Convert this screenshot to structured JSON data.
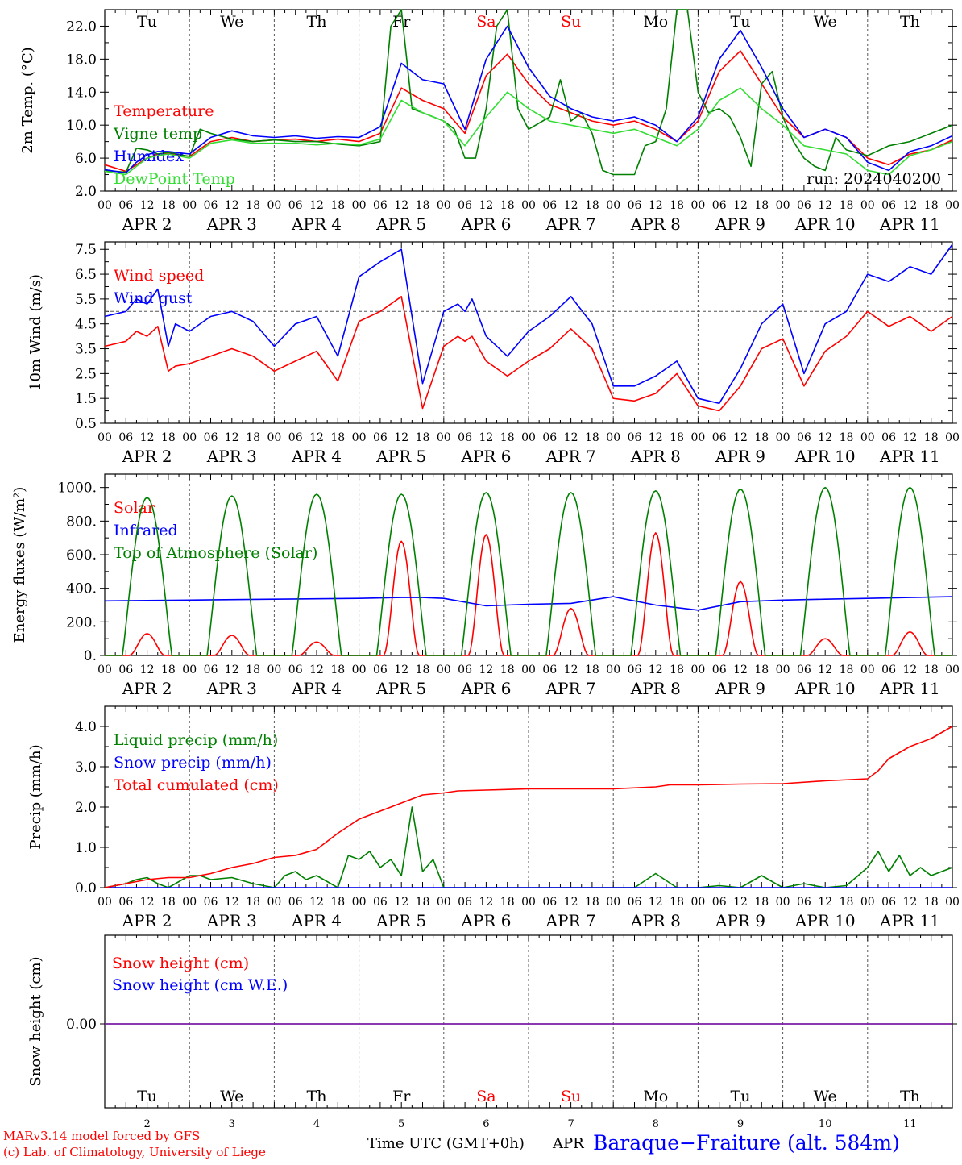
{
  "weekdays": [
    "Tu",
    "We",
    "Th",
    "Fr",
    "Sa",
    "Su",
    "Mo",
    "Tu",
    "We",
    "Th"
  ],
  "weekend_indices": [
    4,
    5
  ],
  "dates": [
    "APR  2",
    "APR  3",
    "APR  4",
    "APR  5",
    "APR  6",
    "APR  7",
    "APR  8",
    "APR  9",
    "APR 10",
    "APR 11"
  ],
  "day_numbers": [
    "2",
    "3",
    "4",
    "5",
    "6",
    "7",
    "8",
    "9",
    "10",
    "11"
  ],
  "hour_ticks": [
    "00",
    "06",
    "12",
    "18"
  ],
  "final_tick": "00",
  "colors": {
    "red": "#ff0000",
    "green": "#008000",
    "blue": "#0000ff",
    "lightgreen": "#33dd33",
    "purple": "#7a1fa2"
  },
  "footer": {
    "model": "MARv3.14 model forced by GFS",
    "lab": "(c) Lab. of Climatology, University of Liege",
    "time_label": "Time UTC (GMT+0h)",
    "month": "APR",
    "station": "Baraque−Fraiture (alt. 584m)"
  },
  "chart_data": [
    {
      "type": "line",
      "ylabel": "2m Temp. (°C)",
      "ylim": [
        2.0,
        24.0
      ],
      "yticks": [
        "2.0",
        "6.0",
        "10.0",
        "14.0",
        "18.0",
        "22.0"
      ],
      "annotation": "run: 2024040200",
      "x_unit": "hours since APR 2 00 UTC",
      "series": [
        {
          "name": "Temperature",
          "color": "#ff0000",
          "x": [
            0,
            6,
            9,
            12,
            15,
            18,
            24,
            30,
            36,
            42,
            48,
            54,
            60,
            66,
            72,
            78,
            84,
            90,
            96,
            102,
            108,
            114,
            120,
            126,
            132,
            138,
            144,
            150,
            156,
            162,
            168,
            174,
            180,
            186,
            192,
            198,
            204,
            210,
            216,
            222,
            228,
            234,
            240
          ],
          "y": [
            5.2,
            4.4,
            5.2,
            6.0,
            6.5,
            6.6,
            6.2,
            8.0,
            8.5,
            8.0,
            8.2,
            8.3,
            8.0,
            8.3,
            8.0,
            9.0,
            14.5,
            13.0,
            12.0,
            9.0,
            16.0,
            18.6,
            15.0,
            12.5,
            11.5,
            10.5,
            10.0,
            10.5,
            9.5,
            8.0,
            10.5,
            16.5,
            19.0,
            15.0,
            11.0,
            8.5,
            9.5,
            8.5,
            6.0,
            5.2,
            6.5,
            7.0,
            8.2
          ]
        },
        {
          "name": "Vigne temp",
          "color": "#008000",
          "x": [
            0,
            6,
            9,
            12,
            15,
            18,
            24,
            27,
            30,
            36,
            42,
            48,
            54,
            60,
            66,
            72,
            78,
            81,
            84,
            87,
            90,
            96,
            99,
            102,
            105,
            108,
            111,
            114,
            117,
            120,
            126,
            129,
            132,
            135,
            138,
            141,
            144,
            150,
            153,
            156,
            159,
            162,
            165,
            168,
            171,
            174,
            177,
            180,
            183,
            186,
            189,
            192,
            195,
            198,
            201,
            204,
            207,
            210,
            216,
            222,
            228,
            234,
            240
          ],
          "y": [
            4.5,
            4.3,
            7.2,
            7.0,
            6.5,
            6.7,
            6.2,
            9.5,
            9.0,
            8.3,
            8.0,
            8.2,
            8.0,
            8.0,
            7.7,
            7.5,
            8.0,
            22.0,
            24.0,
            12.0,
            11.5,
            10.5,
            9.5,
            6.0,
            6.0,
            12.0,
            22.0,
            24.0,
            12.0,
            9.5,
            11.0,
            15.5,
            10.5,
            11.5,
            9.0,
            4.5,
            4.0,
            4.0,
            7.5,
            8.0,
            12.0,
            24.0,
            24.0,
            14.0,
            11.5,
            12.0,
            11.0,
            8.5,
            5.0,
            15.0,
            16.5,
            11.0,
            8.0,
            6.0,
            5.0,
            4.5,
            8.5,
            7.0,
            6.3,
            7.5,
            8.0,
            9.0,
            10.0
          ]
        },
        {
          "name": "Humidex",
          "color": "#0000ff",
          "x": [
            0,
            6,
            9,
            12,
            15,
            18,
            24,
            30,
            36,
            42,
            48,
            54,
            60,
            66,
            72,
            78,
            84,
            90,
            96,
            102,
            108,
            114,
            120,
            126,
            132,
            138,
            144,
            150,
            156,
            162,
            168,
            174,
            180,
            186,
            192,
            198,
            204,
            210,
            216,
            222,
            228,
            234,
            240
          ],
          "y": [
            4.6,
            4.2,
            5.5,
            6.4,
            6.8,
            6.8,
            6.5,
            8.5,
            9.3,
            8.7,
            8.5,
            8.7,
            8.4,
            8.6,
            8.5,
            9.8,
            17.5,
            15.5,
            15.0,
            9.5,
            18.0,
            22.0,
            17.0,
            13.5,
            12.0,
            11.0,
            10.5,
            11.0,
            10.0,
            8.0,
            11.0,
            18.0,
            21.5,
            17.0,
            12.0,
            8.5,
            9.5,
            8.5,
            5.5,
            4.5,
            6.8,
            7.5,
            8.7
          ]
        },
        {
          "name": "DewPoint Temp",
          "color": "#33dd33",
          "x": [
            0,
            6,
            9,
            12,
            15,
            18,
            24,
            30,
            36,
            42,
            48,
            54,
            60,
            66,
            72,
            78,
            84,
            90,
            96,
            102,
            108,
            114,
            120,
            126,
            132,
            138,
            144,
            150,
            156,
            162,
            168,
            174,
            180,
            186,
            192,
            198,
            204,
            210,
            216,
            222,
            228,
            234,
            240
          ],
          "y": [
            4.4,
            4.0,
            5.0,
            6.0,
            6.3,
            6.5,
            6.0,
            7.8,
            8.2,
            7.8,
            7.8,
            7.8,
            7.6,
            7.8,
            7.6,
            8.3,
            13.0,
            11.5,
            10.5,
            7.5,
            11.0,
            14.0,
            12.0,
            10.5,
            10.0,
            9.5,
            9.0,
            9.5,
            8.5,
            7.5,
            9.5,
            13.0,
            14.5,
            12.0,
            10.0,
            7.5,
            7.0,
            6.5,
            4.5,
            4.0,
            6.3,
            7.0,
            8.0
          ]
        }
      ]
    },
    {
      "type": "line",
      "ylabel": "10m Wind (m/s)",
      "ylim": [
        0.5,
        7.8
      ],
      "yticks": [
        "0.5",
        "1.5",
        "2.5",
        "3.5",
        "4.5",
        "5.5",
        "6.5",
        "7.5"
      ],
      "reference_line": 5.0,
      "x_unit": "hours since APR 2 00 UTC",
      "series": [
        {
          "name": "Wind speed",
          "color": "#ff0000",
          "x": [
            0,
            6,
            9,
            12,
            15,
            18,
            20,
            24,
            30,
            36,
            42,
            48,
            54,
            60,
            66,
            72,
            78,
            84,
            90,
            96,
            100,
            102,
            104,
            108,
            114,
            120,
            126,
            132,
            138,
            144,
            150,
            156,
            162,
            168,
            174,
            180,
            186,
            192,
            198,
            204,
            210,
            216,
            222,
            228,
            234,
            240
          ],
          "y": [
            3.6,
            3.8,
            4.2,
            4.0,
            4.4,
            2.6,
            2.8,
            2.9,
            3.2,
            3.5,
            3.2,
            2.6,
            3.0,
            3.4,
            2.2,
            4.6,
            5.0,
            5.6,
            1.1,
            3.6,
            4.0,
            3.8,
            4.0,
            3.0,
            2.4,
            3.0,
            3.5,
            4.3,
            3.5,
            1.5,
            1.4,
            1.7,
            2.5,
            1.2,
            1.0,
            2.0,
            3.5,
            3.9,
            2.0,
            3.4,
            4.0,
            5.0,
            4.4,
            4.8,
            4.2,
            4.8
          ]
        },
        {
          "name": "Wind gust",
          "color": "#0000ff",
          "x": [
            0,
            6,
            9,
            12,
            15,
            18,
            20,
            24,
            30,
            36,
            42,
            48,
            54,
            60,
            66,
            72,
            78,
            84,
            90,
            96,
            100,
            102,
            104,
            108,
            114,
            120,
            126,
            132,
            138,
            144,
            150,
            156,
            162,
            168,
            174,
            180,
            186,
            192,
            198,
            204,
            210,
            216,
            222,
            228,
            234,
            240
          ],
          "y": [
            4.8,
            5.0,
            5.5,
            5.3,
            5.9,
            3.6,
            4.5,
            4.2,
            4.8,
            5.0,
            4.6,
            3.6,
            4.5,
            4.8,
            3.2,
            6.4,
            7.0,
            7.5,
            2.1,
            5.0,
            5.3,
            5.0,
            5.5,
            4.0,
            3.2,
            4.2,
            4.8,
            5.6,
            4.5,
            2.0,
            2.0,
            2.4,
            3.0,
            1.5,
            1.3,
            2.7,
            4.5,
            5.3,
            2.5,
            4.5,
            5.0,
            6.5,
            6.2,
            6.8,
            6.5,
            7.7
          ]
        }
      ]
    },
    {
      "type": "line",
      "ylabel": "Energy fluxes (W/m²)",
      "ylim": [
        0,
        1080
      ],
      "yticks": [
        "0.",
        "200.",
        "400.",
        "600.",
        "800.",
        "1000."
      ],
      "x_unit": "hours since APR 2 00 UTC",
      "series": [
        {
          "name": "Solar",
          "color": "#ff0000",
          "peaks": [
            130,
            120,
            80,
            680,
            720,
            280,
            730,
            440,
            100,
            140
          ]
        },
        {
          "name": "Infrared",
          "color": "#0000ff",
          "x": [
            0,
            24,
            48,
            72,
            84,
            90,
            96,
            108,
            120,
            132,
            144,
            156,
            168,
            180,
            192,
            204,
            216,
            228,
            240
          ],
          "y": [
            325,
            330,
            335,
            340,
            345,
            345,
            340,
            295,
            305,
            310,
            350,
            300,
            270,
            320,
            330,
            335,
            340,
            345,
            350
          ]
        },
        {
          "name": "Top of Atmosphere (Solar)",
          "color": "#008000",
          "peaks": [
            940,
            950,
            960,
            960,
            970,
            970,
            980,
            990,
            1000,
            1000
          ]
        }
      ]
    },
    {
      "type": "line",
      "ylabel": "Precip (mm/h)",
      "ylim": [
        0,
        4.5
      ],
      "yticks": [
        "0.0",
        "1.0",
        "2.0",
        "3.0",
        "4.0"
      ],
      "x_unit": "hours since APR 2 00 UTC",
      "series": [
        {
          "name": "Liquid precip (mm/h)",
          "color": "#008000",
          "x": [
            0,
            6,
            9,
            12,
            15,
            18,
            24,
            27,
            30,
            36,
            42,
            48,
            51,
            54,
            57,
            60,
            66,
            69,
            72,
            75,
            78,
            81,
            84,
            87,
            90,
            93,
            96,
            100,
            102,
            108,
            114,
            120,
            126,
            132,
            138,
            144,
            150,
            156,
            162,
            168,
            174,
            180,
            186,
            192,
            198,
            204,
            210,
            216,
            219,
            222,
            225,
            228,
            231,
            234,
            240
          ],
          "y": [
            0.0,
            0.1,
            0.2,
            0.25,
            0.1,
            0.0,
            0.3,
            0.3,
            0.2,
            0.25,
            0.1,
            0.0,
            0.3,
            0.4,
            0.2,
            0.3,
            0.0,
            0.8,
            0.7,
            0.9,
            0.5,
            0.7,
            0.3,
            2.0,
            0.4,
            0.7,
            0.0,
            0.0,
            0.0,
            0.0,
            0.0,
            0.0,
            0.0,
            0.0,
            0.0,
            0.0,
            0.0,
            0.35,
            0.0,
            0.0,
            0.05,
            0.0,
            0.3,
            0.0,
            0.1,
            0.0,
            0.05,
            0.5,
            0.9,
            0.4,
            0.8,
            0.3,
            0.5,
            0.3,
            0.5
          ]
        },
        {
          "name": "Snow precip (mm/h)",
          "color": "#0000ff",
          "x": [
            0,
            240
          ],
          "y": [
            0,
            0
          ]
        },
        {
          "name": "Total cumulated (cm)",
          "color": "#ff0000",
          "x": [
            0,
            6,
            12,
            18,
            24,
            30,
            36,
            42,
            48,
            54,
            60,
            66,
            72,
            78,
            84,
            90,
            96,
            100,
            108,
            120,
            132,
            144,
            156,
            160,
            168,
            180,
            192,
            204,
            216,
            219,
            222,
            228,
            234,
            240
          ],
          "y": [
            0.0,
            0.1,
            0.2,
            0.25,
            0.25,
            0.35,
            0.5,
            0.6,
            0.75,
            0.8,
            0.95,
            1.35,
            1.7,
            1.9,
            2.1,
            2.3,
            2.35,
            2.4,
            2.42,
            2.45,
            2.45,
            2.45,
            2.5,
            2.55,
            2.55,
            2.57,
            2.58,
            2.65,
            2.7,
            2.9,
            3.2,
            3.5,
            3.7,
            4.0
          ]
        }
      ]
    },
    {
      "type": "line",
      "ylabel": "Snow height (cm)",
      "yticks": [
        "0.00"
      ],
      "x_unit": "hours since APR 2 00 UTC",
      "series": [
        {
          "name": "Snow height (cm)",
          "color": "#ff0000",
          "x": [
            0,
            240
          ],
          "y": [
            0,
            0
          ]
        },
        {
          "name": "Snow height (cm W.E.)",
          "color": "#0000ff",
          "x": [
            0,
            240
          ],
          "y": [
            0,
            0
          ]
        }
      ]
    }
  ]
}
